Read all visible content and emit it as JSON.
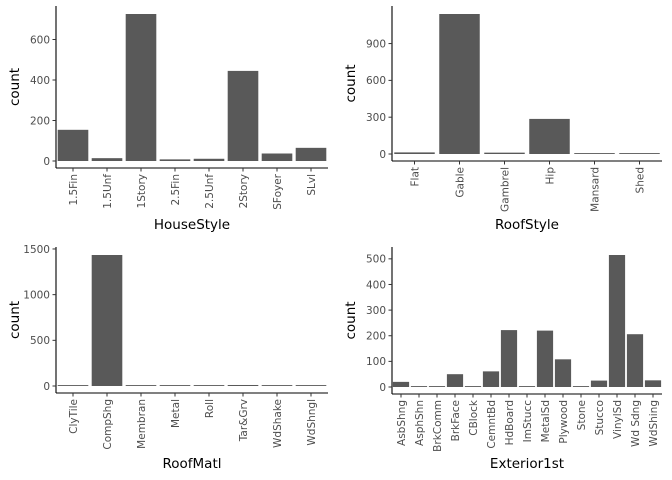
{
  "colors": {
    "bar": "#595959",
    "background": "#ffffff",
    "axis": "#000000",
    "tick_text": "#4d4d4d"
  },
  "chart_data": [
    {
      "type": "bar",
      "title": "",
      "xlabel": "HouseStyle",
      "ylabel": "count",
      "categories": [
        "1.5Fin",
        "1.5Unf",
        "1Story",
        "2.5Fin",
        "2.5Unf",
        "2Story",
        "SFoyer",
        "SLvl"
      ],
      "values": [
        154,
        14,
        726,
        8,
        11,
        445,
        37,
        65
      ],
      "ylim": [
        0,
        726
      ],
      "yticks": [
        0,
        200,
        400,
        600
      ],
      "grid": false,
      "legend": "none"
    },
    {
      "type": "bar",
      "title": "",
      "xlabel": "RoofStyle",
      "ylabel": "count",
      "categories": [
        "Flat",
        "Gable",
        "Gambrel",
        "Hip",
        "Mansard",
        "Shed"
      ],
      "values": [
        13,
        1141,
        11,
        286,
        7,
        2
      ],
      "ylim": [
        0,
        1141
      ],
      "yticks": [
        0,
        300,
        600,
        900
      ],
      "grid": false,
      "legend": "none"
    },
    {
      "type": "bar",
      "title": "",
      "xlabel": "RoofMatl",
      "ylabel": "count",
      "categories": [
        "ClyTile",
        "CompShg",
        "Membran",
        "Metal",
        "Roll",
        "Tar&Grv",
        "WdShake",
        "WdShngl"
      ],
      "values": [
        1,
        1434,
        1,
        1,
        1,
        11,
        5,
        6
      ],
      "ylim": [
        0,
        1434
      ],
      "yticks": [
        0,
        500,
        1000,
        1500
      ],
      "grid": false,
      "legend": "none"
    },
    {
      "type": "bar",
      "title": "",
      "xlabel": "Exterior1st",
      "ylabel": "count",
      "categories": [
        "AsbShng",
        "AsphShn",
        "BrkComm",
        "BrkFace",
        "CBlock",
        "CemntBd",
        "HdBoard",
        "ImStucc",
        "MetalSd",
        "Plywood",
        "Stone",
        "Stucco",
        "VinylSd",
        "Wd Sdng",
        "WdShing"
      ],
      "values": [
        20,
        1,
        2,
        50,
        1,
        61,
        222,
        1,
        220,
        108,
        2,
        25,
        515,
        206,
        26
      ],
      "ylim": [
        0,
        515
      ],
      "yticks": [
        0,
        100,
        200,
        300,
        400,
        500
      ],
      "grid": false,
      "legend": "none"
    }
  ]
}
